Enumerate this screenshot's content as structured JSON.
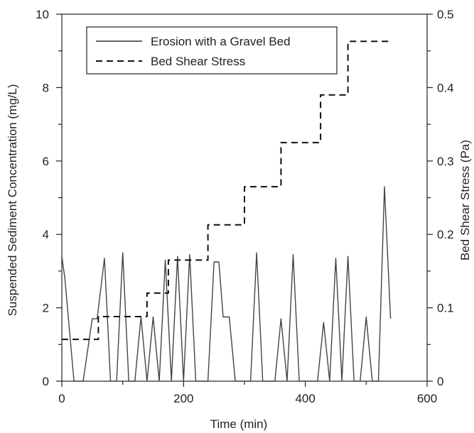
{
  "chart_data": {
    "type": "line",
    "title": "",
    "xlabel": "Time (min)",
    "ylabel": "Suspended Sediment Concentration (mg/L)",
    "y2label": "Bed Shear Stress (Pa)",
    "xlim": [
      0,
      600
    ],
    "ylim": [
      0,
      10
    ],
    "y2lim": [
      0,
      0.5
    ],
    "xticks": [
      0,
      200,
      400,
      600
    ],
    "yticks": [
      0,
      2,
      4,
      6,
      8,
      10
    ],
    "y2ticks": [
      0,
      0.1,
      0.2,
      0.3,
      0.4,
      0.5
    ],
    "y2tick_labels": [
      "0",
      "0.1",
      "0.2",
      "0.3",
      "0.4",
      "0.5"
    ],
    "grid": false,
    "legend_position": "top-left",
    "series": [
      {
        "name": "Erosion with a Gravel Bed",
        "axis": "left",
        "style": "solid",
        "x": [
          0,
          5,
          20,
          35,
          50,
          58,
          70,
          80,
          90,
          100,
          110,
          120,
          130,
          140,
          150,
          160,
          170,
          180,
          190,
          200,
          210,
          220,
          230,
          240,
          250,
          258,
          265,
          275,
          285,
          290,
          300,
          310,
          320,
          330,
          340,
          350,
          360,
          370,
          380,
          390,
          400,
          410,
          420,
          430,
          440,
          450,
          460,
          470,
          480,
          490,
          500,
          510,
          520,
          530,
          540
        ],
        "y": [
          3.4,
          2.8,
          0,
          0,
          1.7,
          1.7,
          3.35,
          0,
          0,
          3.5,
          0,
          0,
          1.75,
          0,
          1.75,
          0,
          3.3,
          0,
          3.4,
          0,
          3.45,
          0,
          0,
          0,
          3.25,
          3.25,
          1.75,
          1.75,
          0,
          0,
          0,
          0,
          3.5,
          0,
          0,
          0,
          1.7,
          0,
          3.45,
          0,
          0,
          0,
          0,
          1.6,
          0,
          3.35,
          0,
          3.4,
          0,
          0,
          1.75,
          0,
          0,
          5.3,
          1.7
        ]
      },
      {
        "name": "Bed Shear Stress",
        "axis": "right",
        "style": "dashed",
        "x": [
          0,
          60,
          60,
          110,
          110,
          140,
          140,
          160,
          160,
          175,
          175,
          205,
          205,
          240,
          240,
          270,
          270,
          300,
          300,
          330,
          330,
          360,
          360,
          390,
          390,
          425,
          425,
          445,
          445,
          470,
          470,
          510,
          510,
          540
        ],
        "y": [
          0.057,
          0.057,
          0.088,
          0.088,
          0.088,
          0.088,
          0.12,
          0.12,
          0.12,
          0.12,
          0.165,
          0.165,
          0.165,
          0.165,
          0.213,
          0.213,
          0.213,
          0.213,
          0.265,
          0.265,
          0.265,
          0.265,
          0.325,
          0.325,
          0.325,
          0.325,
          0.39,
          0.39,
          0.39,
          0.39,
          0.463,
          0.463,
          0.463,
          0.463
        ]
      }
    ]
  }
}
